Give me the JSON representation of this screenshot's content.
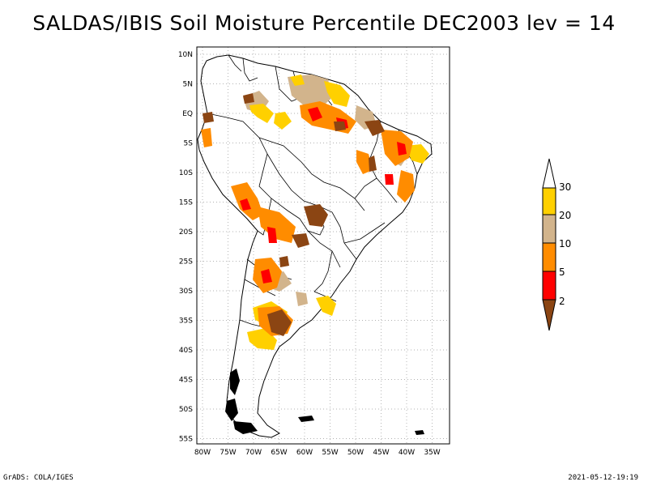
{
  "title": "SALDAS/IBIS Soil Moisture Percentile DEC2003 lev = 14",
  "footer_left": "GrADS: COLA/IGES",
  "footer_right": "2021-05-12-19:19",
  "map": {
    "lat_labels": [
      "10N",
      "5N",
      "EQ",
      "5S",
      "10S",
      "15S",
      "20S",
      "25S",
      "30S",
      "35S",
      "40S",
      "45S",
      "50S",
      "55S"
    ],
    "lon_labels": [
      "80W",
      "75W",
      "70W",
      "65W",
      "60W",
      "55W",
      "50W",
      "45W",
      "40W",
      "35W"
    ],
    "grid": "dotted"
  },
  "legend": {
    "labels": [
      "30",
      "20",
      "10",
      "5",
      "2"
    ],
    "colors": {
      "above_30": "#ffffff",
      "20_30": "#ffd000",
      "10_20": "#d2b48c",
      "5_10": "#ff8c00",
      "2_5": "#ff0000",
      "below_2": "#8b4513"
    }
  }
}
